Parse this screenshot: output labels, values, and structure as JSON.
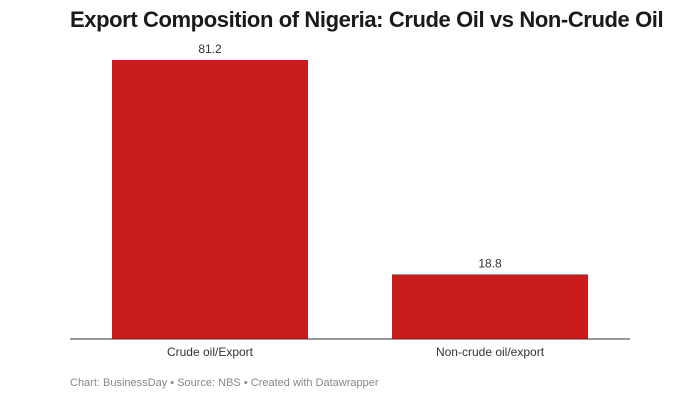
{
  "title": "Export Composition of Nigeria: Crude Oil vs Non-Crude Oil",
  "footer": {
    "chart_credit": "Chart: BusinessDay",
    "separator": " • ",
    "source": "Source: NBS",
    "created_with": "Created with Datawrapper"
  },
  "colors": {
    "bar": "#c91c1c",
    "axis": "#333333",
    "label": "#333333"
  },
  "chart_data": {
    "type": "bar",
    "title": "Export Composition of Nigeria: Crude Oil vs Non-Crude Oil",
    "categories": [
      "Crude oil/Export",
      "Non-crude oil/export"
    ],
    "values": [
      81.2,
      18.8
    ],
    "value_labels": [
      "81.2",
      "18.8"
    ],
    "xlabel": "",
    "ylabel": "",
    "ylim": [
      0,
      81.2
    ],
    "grid": false,
    "legend": "none"
  }
}
